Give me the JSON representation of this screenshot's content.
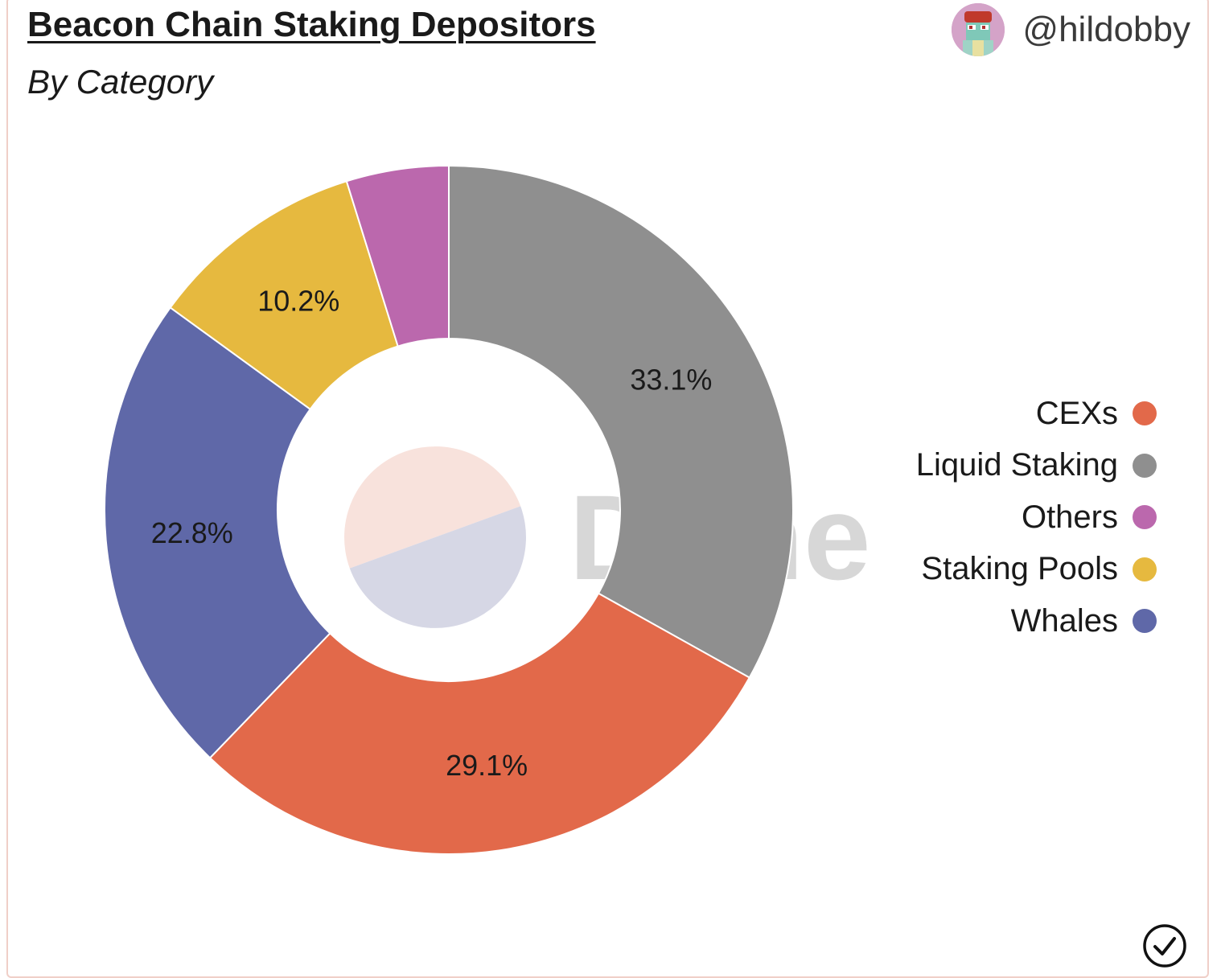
{
  "header": {
    "title": "Beacon Chain Staking Depositors",
    "subtitle": "By Category",
    "handle": "@hildobby"
  },
  "watermark": "Dune",
  "chart_data": {
    "type": "pie",
    "variant": "donut",
    "slices": [
      {
        "name": "Liquid Staking",
        "value": 33.1,
        "label": "33.1%",
        "color": "#8f8f8f"
      },
      {
        "name": "CEXs",
        "value": 29.1,
        "label": "29.1%",
        "color": "#e2694a"
      },
      {
        "name": "Whales",
        "value": 22.8,
        "label": "22.8%",
        "color": "#5f68a8"
      },
      {
        "name": "Staking Pools",
        "value": 10.2,
        "label": "10.2%",
        "color": "#e6b93f"
      },
      {
        "name": "Others",
        "value": 4.8,
        "label": "",
        "color": "#bb68ad"
      }
    ],
    "legend": {
      "position": "right",
      "items": [
        "CEXs",
        "Liquid Staking",
        "Others",
        "Staking Pools",
        "Whales"
      ]
    }
  },
  "icons": {
    "avatar": "user-avatar-icon",
    "status": "checkmark-circle-icon"
  }
}
